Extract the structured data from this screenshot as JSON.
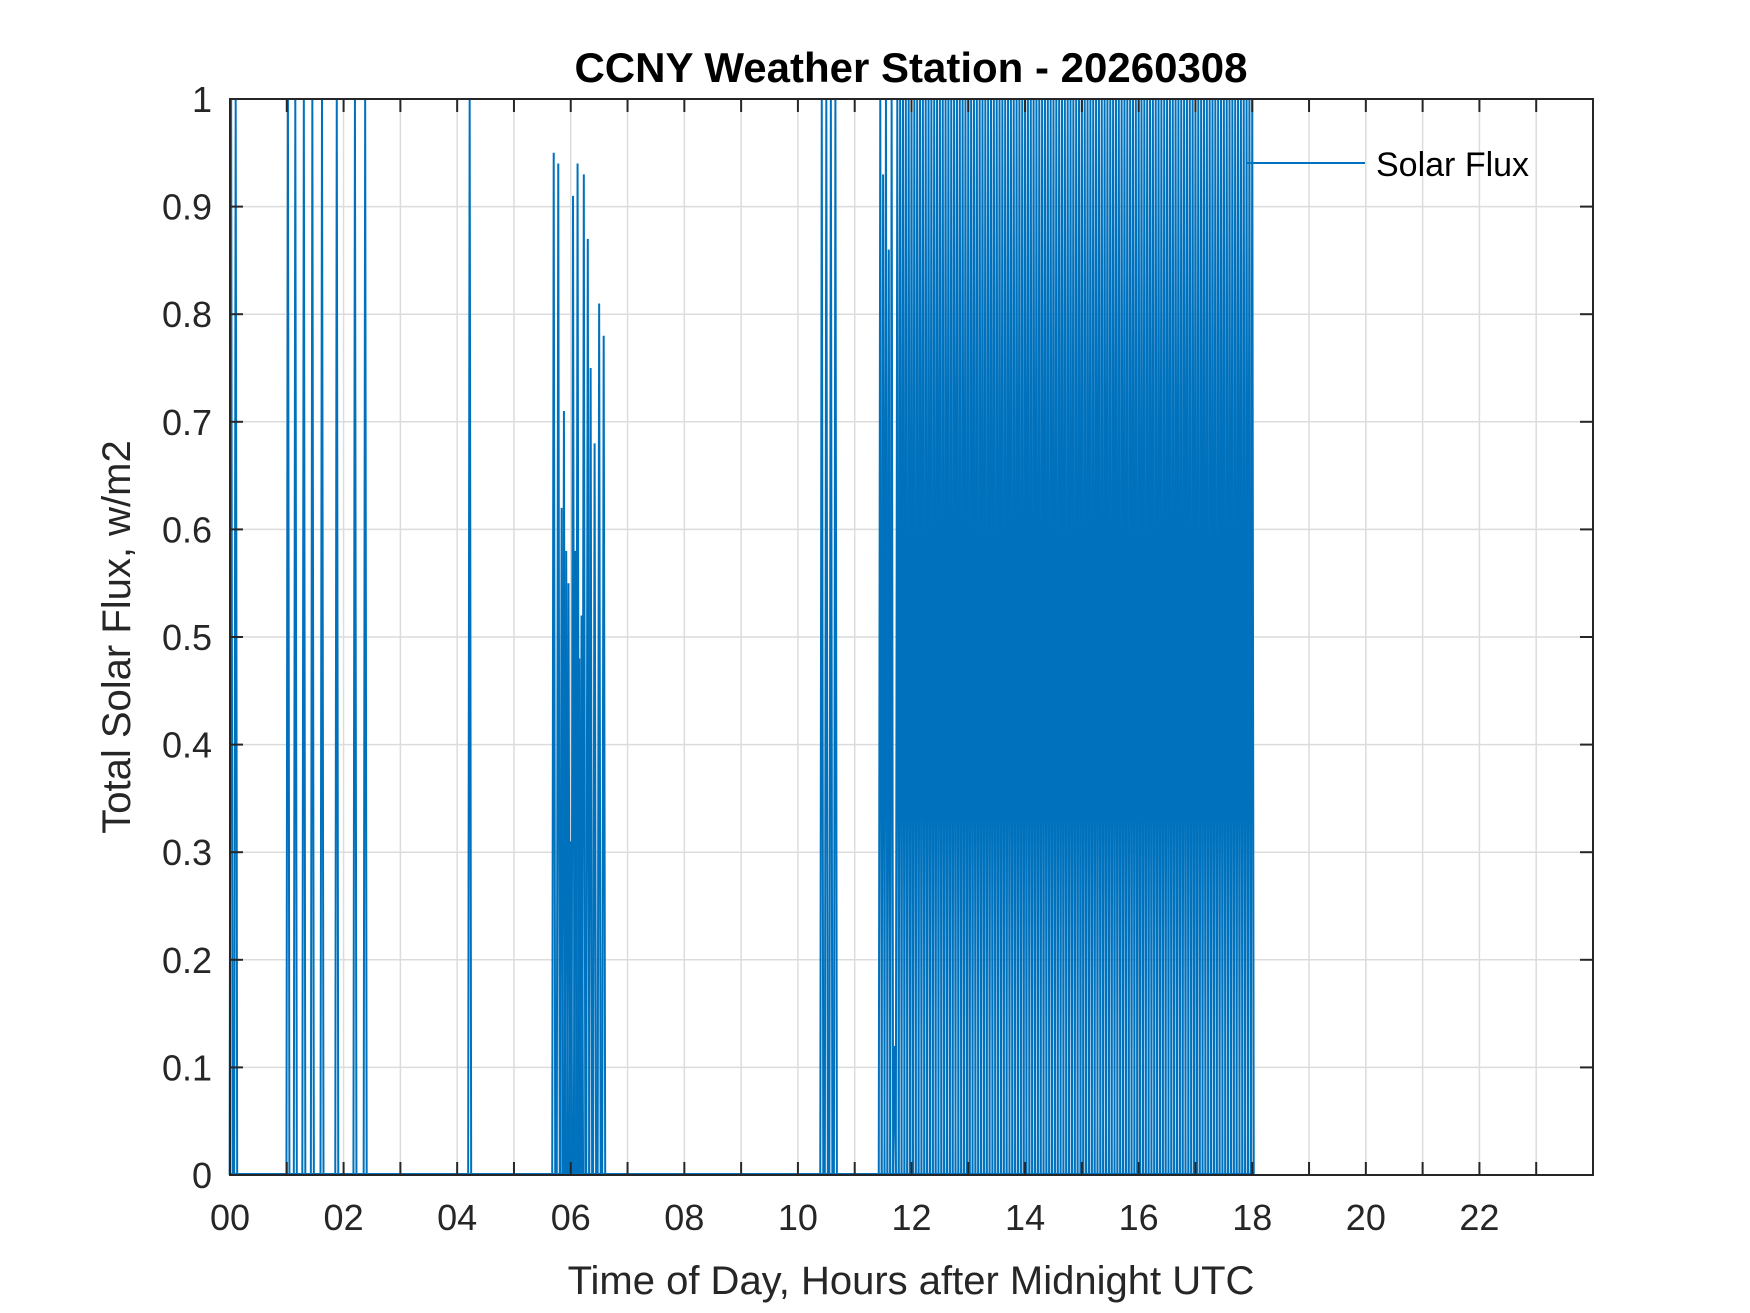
{
  "chart_data": {
    "type": "line",
    "title": "CCNY Weather Station - 20260308",
    "xlabel": "Time of Day, Hours after Midnight UTC",
    "ylabel": "Total Solar Flux, w/m2",
    "xlim": [
      0,
      24
    ],
    "ylim": [
      0,
      1
    ],
    "x_ticks": [
      0,
      2,
      4,
      6,
      8,
      10,
      12,
      14,
      16,
      18,
      20,
      22
    ],
    "x_tick_labels": [
      "00",
      "02",
      "04",
      "06",
      "08",
      "10",
      "12",
      "14",
      "16",
      "18",
      "20",
      "22"
    ],
    "y_ticks": [
      0,
      0.1,
      0.2,
      0.3,
      0.4,
      0.5,
      0.6,
      0.7,
      0.8,
      0.9,
      1
    ],
    "y_tick_labels": [
      "0",
      "0.1",
      "0.2",
      "0.3",
      "0.4",
      "0.5",
      "0.6",
      "0.7",
      "0.8",
      "0.9",
      "1"
    ],
    "grid": true,
    "legend": "top-right",
    "series": [
      {
        "name": "Solar Flux",
        "color": "#0072BD",
        "spikes": [
          [
            0.02,
            1
          ],
          [
            0.1,
            1
          ],
          [
            1.02,
            1
          ],
          [
            1.15,
            1
          ],
          [
            1.3,
            1
          ],
          [
            1.45,
            1
          ],
          [
            1.62,
            1
          ],
          [
            1.88,
            1
          ],
          [
            2.2,
            1
          ],
          [
            2.38,
            1
          ],
          [
            4.22,
            1
          ],
          [
            5.7,
            0.95
          ],
          [
            5.78,
            0.94
          ],
          [
            5.84,
            0.62
          ],
          [
            5.88,
            0.71
          ],
          [
            5.92,
            0.58
          ],
          [
            5.96,
            0.55
          ],
          [
            6.0,
            0.31
          ],
          [
            6.04,
            0.91
          ],
          [
            6.08,
            0.58
          ],
          [
            6.12,
            0.94
          ],
          [
            6.15,
            0.48
          ],
          [
            6.19,
            0.52
          ],
          [
            6.23,
            0.93
          ],
          [
            6.3,
            0.87
          ],
          [
            6.35,
            0.75
          ],
          [
            6.42,
            0.68
          ],
          [
            6.5,
            0.81
          ],
          [
            6.58,
            0.78
          ],
          [
            10.42,
            1
          ],
          [
            10.5,
            1
          ],
          [
            10.58,
            1
          ],
          [
            10.66,
            1
          ]
        ],
        "dense_band": {
          "x_start": 11.45,
          "x_end": 18.0,
          "step_hours": 0.05,
          "peak": 1,
          "floor": 0
        },
        "dips": [
          [
            11.52,
            0.93
          ],
          [
            11.62,
            0.86
          ],
          [
            11.72,
            0.12
          ]
        ]
      }
    ]
  }
}
